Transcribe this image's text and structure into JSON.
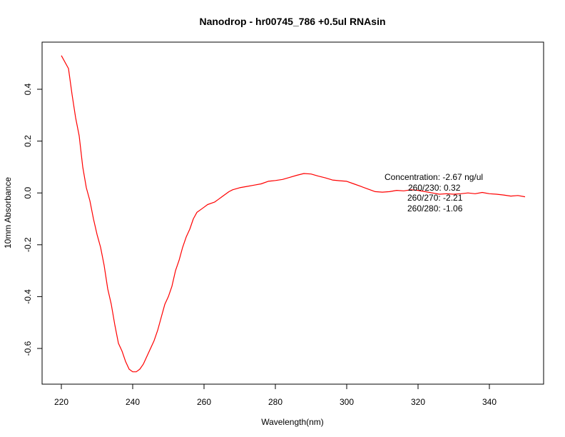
{
  "chart_data": {
    "type": "line",
    "title": "Nanodrop - hr00745_786 +0.5ul RNAsin",
    "xlabel": "Wavelength(nm)",
    "ylabel": "10mm Absorbance",
    "xlim": [
      220,
      350
    ],
    "ylim": [
      -0.7,
      0.54
    ],
    "x_ticks": [
      220,
      240,
      260,
      280,
      300,
      320,
      340
    ],
    "y_ticks": [
      -0.6,
      -0.4,
      -0.2,
      0.0,
      0.2,
      0.4
    ],
    "x_tick_labels": [
      "220",
      "240",
      "260",
      "280",
      "300",
      "320",
      "340"
    ],
    "y_tick_labels": [
      "-0.6",
      "-0.4",
      "-0.2",
      "0.0",
      "0.2",
      "0.4"
    ],
    "grid": false,
    "series": [
      {
        "color": "#ff0000",
        "x": [
          220,
          222,
          223,
          224,
          225,
          226,
          227,
          228,
          229,
          230,
          231,
          232,
          233,
          234,
          235,
          236,
          237,
          238,
          239,
          240,
          241,
          242,
          243,
          244,
          245,
          246,
          247,
          248,
          249,
          250,
          251,
          252,
          253,
          254,
          255,
          256,
          257,
          258,
          259,
          260,
          261,
          262,
          263,
          264,
          265,
          266,
          267,
          268,
          270,
          272,
          274,
          276,
          278,
          280,
          282,
          284,
          286,
          288,
          290,
          292,
          294,
          296,
          298,
          300,
          302,
          304,
          306,
          308,
          310,
          312,
          314,
          316,
          318,
          320,
          322,
          324,
          326,
          328,
          330,
          332,
          334,
          336,
          338,
          340,
          342,
          344,
          346,
          348,
          350
        ],
        "y": [
          0.53,
          0.48,
          0.38,
          0.29,
          0.22,
          0.1,
          0.02,
          -0.03,
          -0.1,
          -0.16,
          -0.21,
          -0.28,
          -0.37,
          -0.43,
          -0.51,
          -0.58,
          -0.61,
          -0.65,
          -0.68,
          -0.69,
          -0.69,
          -0.68,
          -0.66,
          -0.63,
          -0.6,
          -0.57,
          -0.53,
          -0.48,
          -0.43,
          -0.4,
          -0.36,
          -0.3,
          -0.26,
          -0.21,
          -0.17,
          -0.14,
          -0.1,
          -0.075,
          -0.065,
          -0.055,
          -0.045,
          -0.04,
          -0.035,
          -0.025,
          -0.015,
          -0.005,
          0.005,
          0.012,
          0.02,
          0.025,
          0.03,
          0.035,
          0.045,
          0.048,
          0.052,
          0.06,
          0.068,
          0.075,
          0.073,
          0.065,
          0.058,
          0.05,
          0.047,
          0.045,
          0.035,
          0.025,
          0.015,
          0.005,
          0.003,
          0.005,
          0.01,
          0.008,
          0.012,
          0.01,
          0.005,
          0.0,
          -0.005,
          -0.003,
          -0.005,
          -0.003,
          0.0,
          -0.003,
          0.002,
          -0.003,
          -0.005,
          -0.008,
          -0.012,
          -0.01,
          -0.015
        ]
      }
    ],
    "annotations": [
      "Concentration: -2.67 ng/ul",
      "260/230: 0.32",
      "260/270: -2.21",
      "260/280: -1.06"
    ]
  }
}
